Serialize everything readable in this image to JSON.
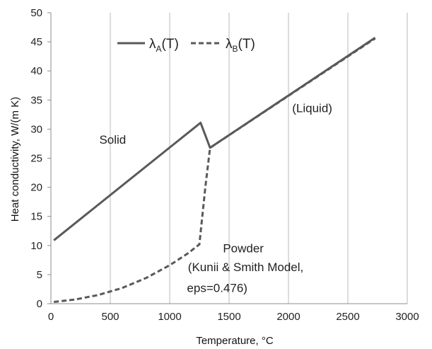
{
  "chart_data": {
    "type": "line",
    "xlabel": "Temperature,  °C",
    "ylabel": "Heat conductivity, W/(m K)",
    "xlim": [
      0,
      3000
    ],
    "ylim": [
      0,
      50
    ],
    "xticks": [
      0,
      500,
      1000,
      1500,
      2000,
      2500,
      3000
    ],
    "yticks": [
      0,
      5,
      10,
      15,
      20,
      25,
      30,
      35,
      40,
      45,
      50
    ],
    "grid": {
      "vertical": true,
      "horizontal": false
    },
    "legend": {
      "position": "top-left"
    },
    "series": [
      {
        "name_main": "λ",
        "name_sub": "A",
        "name_tail": "(T)",
        "style": "solid",
        "color": "#595959",
        "x": [
          25,
          1260,
          1340,
          2730
        ],
        "y": [
          10.9,
          31.1,
          26.8,
          45.7
        ]
      },
      {
        "name_main": "λ",
        "name_sub": "B",
        "name_tail": "(T)",
        "style": "dashed",
        "color": "#595959",
        "x": [
          25,
          200,
          400,
          600,
          800,
          1000,
          1150,
          1250,
          1300,
          1340,
          2730
        ],
        "y": [
          0.3,
          0.7,
          1.5,
          2.7,
          4.4,
          6.6,
          8.6,
          10.2,
          20.0,
          26.8,
          45.6
        ]
      }
    ],
    "annotations": [
      {
        "text": "Solid",
        "x": 520,
        "y": 27.5
      },
      {
        "text": "(Liquid)",
        "x": 2200,
        "y": 32.9
      },
      {
        "text": "Powder",
        "x": 1620,
        "y": 8.8
      },
      {
        "text": "(Kunii & Smith Model,",
        "x": 1640,
        "y": 5.6
      },
      {
        "text": "eps=0.476)",
        "x": 1400,
        "y": 2.0
      }
    ]
  }
}
